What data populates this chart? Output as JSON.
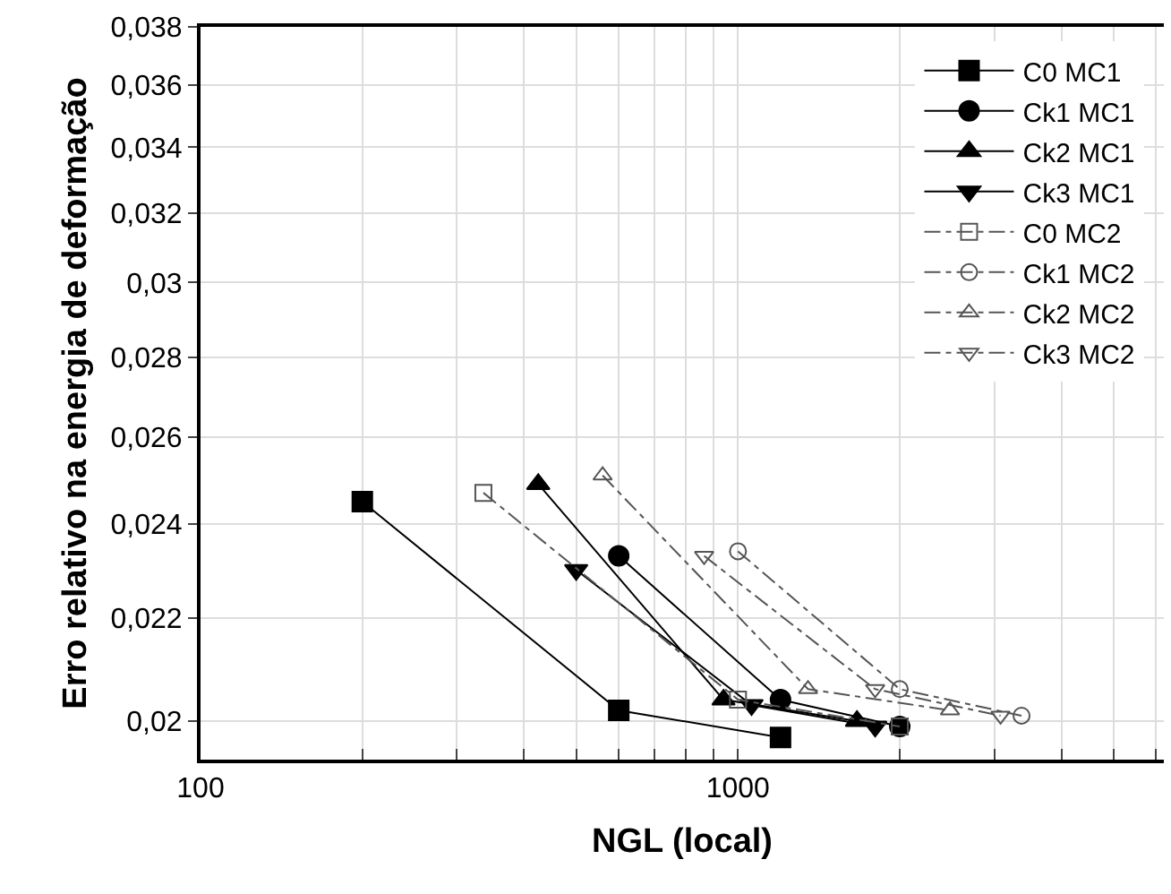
{
  "chart_data": {
    "type": "line",
    "xlabel": "NGL (local)",
    "ylabel": "Erro relativo na energia de deformação",
    "log": "xy",
    "grid": true,
    "legend": "top right",
    "xlim": [
      100,
      6200
    ],
    "xticks": [
      100,
      {
        "value": 200,
        "label": null
      },
      {
        "value": 300,
        "label": null
      },
      {
        "value": 400,
        "label": null
      },
      {
        "value": 500,
        "label": null
      },
      {
        "value": 600,
        "label": null
      },
      {
        "value": 700,
        "label": null
      },
      {
        "value": 800,
        "label": null
      },
      {
        "value": 900,
        "label": null
      },
      1000,
      {
        "value": 2000,
        "label": null
      },
      {
        "value": 3000,
        "label": null
      },
      {
        "value": 4000,
        "label": null
      },
      {
        "value": 5000,
        "label": null
      },
      {
        "value": 6000,
        "label": null
      }
    ],
    "ylim": [
      0.0193,
      0.038
    ],
    "yticks": [
      {
        "value": 0.02,
        "label": "0,02"
      },
      {
        "value": 0.022,
        "label": "0,022"
      },
      {
        "value": 0.024,
        "label": "0,024"
      },
      {
        "value": 0.026,
        "label": "0,026"
      },
      {
        "value": 0.028,
        "label": "0,028"
      },
      {
        "value": 0.03,
        "label": "0,03"
      },
      {
        "value": 0.032,
        "label": "0,032"
      },
      {
        "value": 0.034,
        "label": "0,034"
      },
      {
        "value": 0.036,
        "label": "0,036"
      },
      {
        "value": 0.038,
        "label": "0,038"
      }
    ],
    "series": [
      {
        "name": "C0 MC1",
        "color": "#000000",
        "marker": "square",
        "line_style": "solid",
        "x": [
          200,
          600,
          1200
        ],
        "values": [
          0.0245,
          0.0202,
          0.0197
        ]
      },
      {
        "name": "Ck1 MC1",
        "color": "#000000",
        "marker": "circle",
        "line_style": "solid",
        "x": [
          600,
          1200,
          2000
        ],
        "values": [
          0.0233,
          0.0204,
          0.0199
        ]
      },
      {
        "name": "Ck2 MC1",
        "color": "#000000",
        "marker": "triangle",
        "line_style": "solid",
        "x": [
          425,
          940,
          1665
        ],
        "values": [
          0.0249,
          0.0204,
          0.02
        ]
      },
      {
        "name": "Ck3 MC1",
        "color": "#000000",
        "marker": "triangle-down",
        "line_style": "solid",
        "x": [
          500,
          1060,
          1800
        ],
        "values": [
          0.023,
          0.0203,
          0.0199
        ]
      },
      {
        "name": "C0 MC2",
        "color": "#555555",
        "marker": "square",
        "line_style": "dashed",
        "x": [
          336,
          1000,
          2000
        ],
        "values": [
          0.0247,
          0.0204,
          0.0199
        ]
      },
      {
        "name": "Ck1 MC2",
        "color": "#555555",
        "marker": "circle",
        "line_style": "dashed",
        "x": [
          1000,
          2000,
          3370
        ],
        "values": [
          0.0234,
          0.0206,
          0.0201
        ]
      },
      {
        "name": "Ck2 MC2",
        "color": "#555555",
        "marker": "triangle",
        "line_style": "dashed",
        "x": [
          560,
          1350,
          2480
        ],
        "values": [
          0.0251,
          0.0206,
          0.0202
        ]
      },
      {
        "name": "Ck3 MC2",
        "color": "#555555",
        "marker": "triangle-down",
        "line_style": "dashed",
        "x": [
          865,
          1800,
          3080
        ],
        "values": [
          0.0233,
          0.0206,
          0.0201
        ]
      }
    ]
  }
}
